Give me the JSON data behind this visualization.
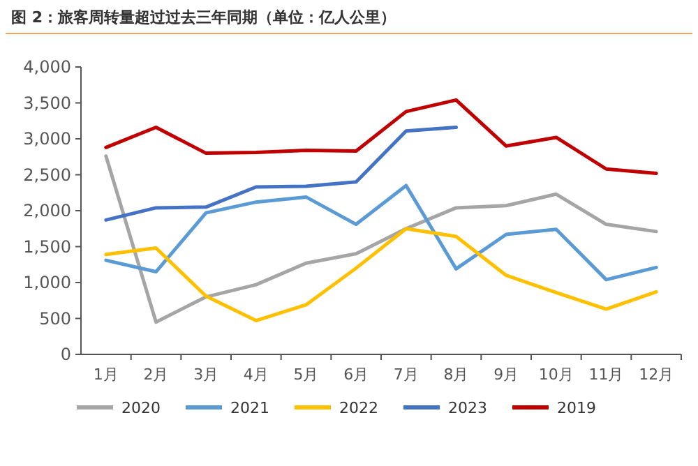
{
  "chart_data": {
    "type": "line",
    "title": "图 2：旅客周转量超过过去三年同期（单位：亿人公里）",
    "categories": [
      "1月",
      "2月",
      "3月",
      "4月",
      "5月",
      "6月",
      "7月",
      "8月",
      "9月",
      "10月",
      "11月",
      "12月"
    ],
    "series": [
      {
        "name": "2020",
        "color": "#a5a5a5",
        "values": [
          2760,
          450,
          800,
          970,
          1270,
          1400,
          1750,
          2040,
          2070,
          2230,
          1810,
          1710
        ]
      },
      {
        "name": "2021",
        "color": "#5b9bd5",
        "values": [
          1310,
          1150,
          1970,
          2120,
          2190,
          1810,
          2350,
          1190,
          1670,
          1740,
          1040,
          1210
        ]
      },
      {
        "name": "2022",
        "color": "#ffc000",
        "values": [
          1390,
          1480,
          810,
          470,
          690,
          1200,
          1750,
          1640,
          1100,
          860,
          630,
          870
        ]
      },
      {
        "name": "2023",
        "color": "#4472c4",
        "values": [
          1870,
          2040,
          2050,
          2330,
          2340,
          2400,
          3110,
          3160,
          null,
          null,
          null,
          null
        ]
      },
      {
        "name": "2019",
        "color": "#c00000",
        "values": [
          2880,
          3160,
          2800,
          2810,
          2840,
          2830,
          3380,
          3540,
          2900,
          3020,
          2580,
          2520
        ]
      }
    ],
    "ylim": [
      0,
      4000
    ],
    "yticks": [
      {
        "value": 0,
        "label": "0"
      },
      {
        "value": 500,
        "label": "500"
      },
      {
        "value": 1000,
        "label": "1,000"
      },
      {
        "value": 1500,
        "label": "1,500"
      },
      {
        "value": 2000,
        "label": "2,000"
      },
      {
        "value": 2500,
        "label": "2,500"
      },
      {
        "value": 3000,
        "label": "3,000"
      },
      {
        "value": 3500,
        "label": "3,500"
      },
      {
        "value": 4000,
        "label": "4,000"
      }
    ],
    "grid": false,
    "legend": "bottom",
    "marker": "none",
    "line_style": "solid"
  }
}
